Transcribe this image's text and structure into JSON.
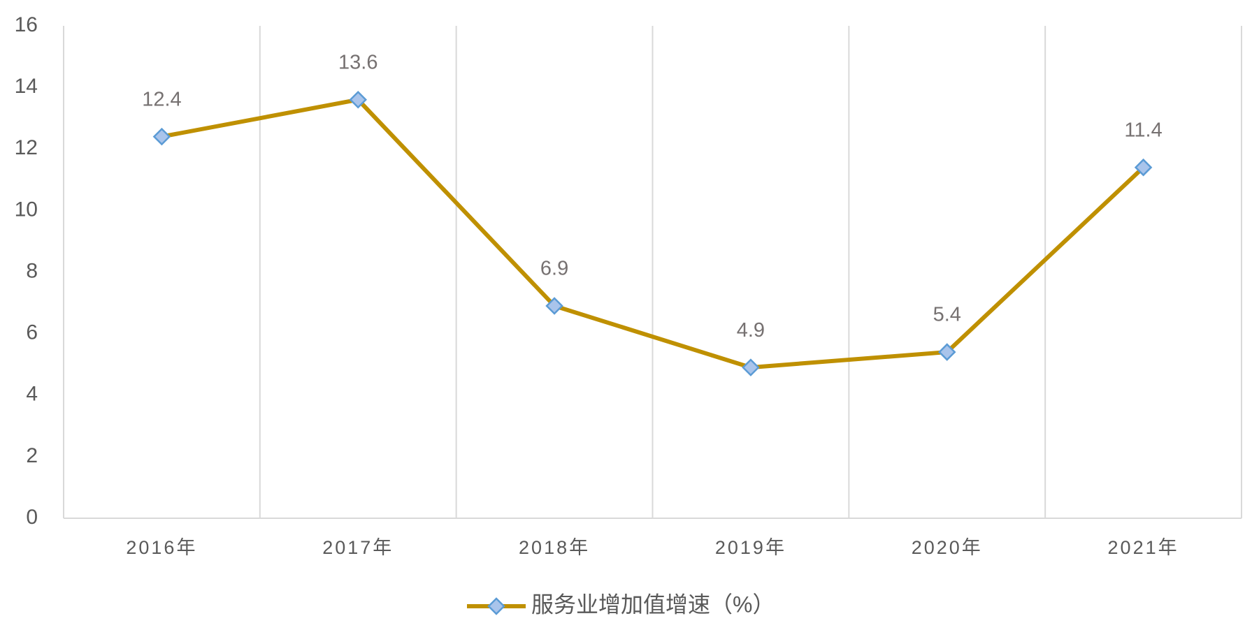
{
  "chart_data": {
    "type": "line",
    "categories": [
      "2016年",
      "2017年",
      "2018年",
      "2019年",
      "2020年",
      "2021年"
    ],
    "series": [
      {
        "name": "服务业增加值增速（%）",
        "color": "#bf9000",
        "marker_fill": "#a9c4eb",
        "marker_stroke": "#5b9bd5",
        "values": [
          12.4,
          13.6,
          6.9,
          4.9,
          5.4,
          11.4
        ]
      }
    ],
    "ylim": [
      0,
      16
    ],
    "yticks": [
      0,
      2,
      4,
      6,
      8,
      10,
      12,
      14,
      16
    ],
    "grid": "vertical",
    "legend": "bottom"
  }
}
